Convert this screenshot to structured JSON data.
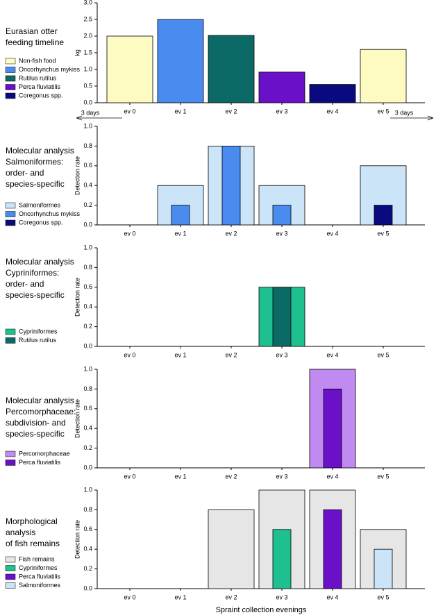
{
  "chart_data": [
    {
      "type": "bar",
      "title": [
        "Eurasian otter",
        "feeding timeline"
      ],
      "ylabel": "kg",
      "categories": [
        "ev 0",
        "ev 1",
        "ev 2",
        "ev 3",
        "ev 4",
        "ev 5"
      ],
      "series": [
        {
          "name": "Non-fish food",
          "color": "#fdfbc2",
          "values": [
            2.0,
            null,
            null,
            null,
            null,
            1.6
          ]
        },
        {
          "name": "Oncorhynchus mykiss",
          "color": "#4a8bf0",
          "values": [
            null,
            2.5,
            null,
            null,
            null,
            null
          ]
        },
        {
          "name": "Rutilus rutilus",
          "color": "#0b6a66",
          "values": [
            null,
            null,
            2.02,
            null,
            null,
            null
          ]
        },
        {
          "name": "Perca fluviatilis",
          "color": "#6a10c8",
          "values": [
            null,
            null,
            null,
            0.92,
            null,
            null
          ]
        },
        {
          "name": "Coregonus spp.",
          "color": "#0a0a80",
          "values": [
            null,
            null,
            null,
            null,
            0.55,
            null
          ]
        }
      ],
      "ylim": [
        0,
        3
      ],
      "yticks": [
        {
          "value": 0,
          "label": "0.0"
        },
        0.5,
        {
          "value": 1,
          "label": "1.0"
        },
        1.5,
        {
          "value": 2,
          "label": "2.0"
        },
        2.5,
        {
          "value": 3,
          "label": "3.0"
        }
      ],
      "annotations": [
        "3 days",
        "3 days"
      ]
    },
    {
      "type": "overlay-bar",
      "title": [
        "Molecular analysis",
        "Salmoniformes:",
        "order- and",
        "species-specific"
      ],
      "ylabel": "Detection rate",
      "categories": [
        "ev 0",
        "ev 1",
        "ev 2",
        "ev 3",
        "ev 4",
        "ev 5"
      ],
      "series": [
        {
          "name": "Salmoniformes",
          "color": "#cce4f8",
          "values": [
            0,
            0.4,
            0.8,
            0.4,
            0,
            0.6
          ]
        },
        {
          "name": "Oncorhynchus mykiss",
          "color": "#4a8bf0",
          "values": [
            0,
            0.2,
            0.8,
            0.2,
            0,
            0
          ]
        },
        {
          "name": "Coregonus spp.",
          "color": "#0a0a80",
          "values": [
            0,
            0,
            0,
            0,
            0,
            0.2
          ]
        }
      ],
      "ylim": [
        0,
        1
      ],
      "yticks": [
        {
          "value": 0,
          "label": "0.0"
        },
        0.2,
        0.4,
        0.6,
        0.8,
        {
          "value": 1,
          "label": "1.0"
        }
      ]
    },
    {
      "type": "overlay-bar",
      "title": [
        "Molecular analysis",
        "Cypriniformes:",
        "order- and",
        "species-specific"
      ],
      "ylabel": "Detection rate",
      "categories": [
        "ev 0",
        "ev 1",
        "ev 2",
        "ev 3",
        "ev 4",
        "ev 5"
      ],
      "series": [
        {
          "name": "Cypriniformes",
          "color": "#1fc08f",
          "values": [
            0,
            0,
            0,
            0.6,
            0,
            0
          ]
        },
        {
          "name": "Rutilus rutilus",
          "color": "#0b6a66",
          "values": [
            0,
            0,
            0,
            0.6,
            0,
            0
          ]
        }
      ],
      "ylim": [
        0,
        1
      ],
      "yticks": [
        {
          "value": 0,
          "label": "0.0"
        },
        0.2,
        0.4,
        0.6,
        0.8,
        {
          "value": 1,
          "label": "1.0"
        }
      ]
    },
    {
      "type": "overlay-bar",
      "title": [
        "Molecular analysis",
        "Percomorphaceae:",
        "subdivision- and",
        "species-specific"
      ],
      "ylabel": "Detection rate",
      "categories": [
        "ev 0",
        "ev 1",
        "ev 2",
        "ev 3",
        "ev 4",
        "ev 5"
      ],
      "series": [
        {
          "name": "Percomorphaceae",
          "color": "#c08af0",
          "values": [
            0,
            0,
            0,
            0,
            1.0,
            0
          ]
        },
        {
          "name": "Perca fluviatilis",
          "color": "#6a10c8",
          "values": [
            0,
            0,
            0,
            0,
            0.8,
            0
          ]
        }
      ],
      "ylim": [
        0,
        1
      ],
      "yticks": [
        {
          "value": 0,
          "label": "0.0"
        },
        0.2,
        0.4,
        0.6,
        0.8,
        {
          "value": 1,
          "label": "1.0"
        }
      ]
    },
    {
      "type": "overlay-bar",
      "title": [
        "Morphological",
        "analysis",
        "of fish remains"
      ],
      "ylabel": "Detection rate",
      "xlabel": "Spraint collection evenings",
      "categories": [
        "ev 0",
        "ev 1",
        "ev 2",
        "ev 3",
        "ev 4",
        "ev 5"
      ],
      "series": [
        {
          "name": "Fish remains",
          "color": "#e6e6e6",
          "values": [
            0,
            0,
            0.8,
            1.0,
            1.0,
            0.6
          ]
        },
        {
          "name": "Cypriniformes",
          "color": "#1fc08f",
          "values": [
            0,
            0,
            0,
            0.6,
            0,
            0
          ]
        },
        {
          "name": "Perca fluviatilis",
          "color": "#6a10c8",
          "values": [
            0,
            0,
            0,
            0,
            0.8,
            0
          ]
        },
        {
          "name": "Salmoniformes",
          "color": "#cce4f8",
          "values": [
            0,
            0,
            0,
            0,
            0,
            0.4
          ]
        }
      ],
      "ylim": [
        0,
        1
      ],
      "yticks": [
        {
          "value": 0,
          "label": "0.0"
        },
        0.2,
        0.4,
        0.6,
        0.8,
        {
          "value": 1,
          "label": "1.0"
        }
      ]
    }
  ]
}
